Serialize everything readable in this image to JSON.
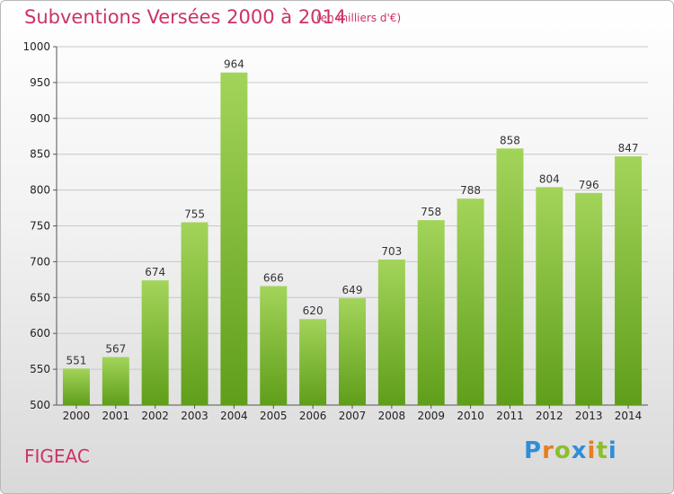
{
  "header": {
    "title": "Subventions Versées 2000 à 2014",
    "subtitle": "(en milliers d'€)"
  },
  "footer": {
    "commune": "FIGEAC",
    "logo_text": "Proxiti"
  },
  "colors": {
    "title": "#cc3366",
    "bar_light": "#a3d45a",
    "bar_dark": "#5f9e1a",
    "grid": "#c8c8c8"
  },
  "chart_data": {
    "type": "bar",
    "categories": [
      "2000",
      "2001",
      "2002",
      "2003",
      "2004",
      "2005",
      "2006",
      "2007",
      "2008",
      "2009",
      "2010",
      "2011",
      "2012",
      "2013",
      "2014"
    ],
    "values": [
      551,
      567,
      674,
      755,
      964,
      666,
      620,
      649,
      703,
      758,
      788,
      858,
      804,
      796,
      847
    ],
    "ylim": [
      500,
      1000
    ],
    "yticks": [
      500,
      550,
      600,
      650,
      700,
      750,
      800,
      850,
      900,
      950,
      1000
    ],
    "grid": true
  }
}
